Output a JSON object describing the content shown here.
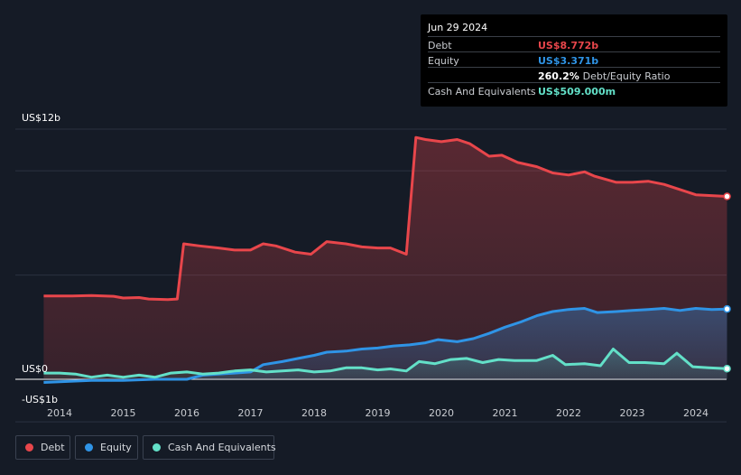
{
  "tooltip": {
    "date": "Jun 29 2024",
    "rows": [
      {
        "label": "Debt",
        "value": "US$8.772b",
        "color": "#e8464b"
      },
      {
        "label": "Equity",
        "value": "US$3.371b",
        "color": "#2f94e6"
      },
      {
        "label": "",
        "value": "260.2%",
        "extra": "Debt/Equity Ratio",
        "color": "#ffffff"
      },
      {
        "label": "Cash And Equivalents",
        "value": "US$509.000m",
        "color": "#63e0c8"
      }
    ]
  },
  "legend": [
    {
      "label": "Debt",
      "color": "#e8464b"
    },
    {
      "label": "Equity",
      "color": "#2f94e6"
    },
    {
      "label": "Cash And Equivalents",
      "color": "#63e0c8"
    }
  ],
  "chart_data": {
    "type": "area",
    "title": "",
    "xlabel": "",
    "ylabel": "",
    "ylim": [
      -1,
      12
    ],
    "y_tick_labels": [
      "US$12b",
      "US$0",
      "-US$1b"
    ],
    "x_tick_labels": [
      "2014",
      "2015",
      "2016",
      "2017",
      "2018",
      "2019",
      "2020",
      "2021",
      "2022",
      "2023",
      "2024"
    ],
    "series": [
      {
        "name": "Debt",
        "color": "#e8464b",
        "points": [
          [
            2013.75,
            4.0
          ],
          [
            2014.2,
            4.0
          ],
          [
            2014.5,
            4.02
          ],
          [
            2014.85,
            3.98
          ],
          [
            2015.0,
            3.9
          ],
          [
            2015.25,
            3.92
          ],
          [
            2015.4,
            3.85
          ],
          [
            2015.7,
            3.82
          ],
          [
            2015.85,
            3.85
          ],
          [
            2015.95,
            6.5
          ],
          [
            2016.2,
            6.4
          ],
          [
            2016.5,
            6.3
          ],
          [
            2016.75,
            6.2
          ],
          [
            2017.0,
            6.2
          ],
          [
            2017.2,
            6.5
          ],
          [
            2017.4,
            6.4
          ],
          [
            2017.7,
            6.1
          ],
          [
            2017.95,
            6.0
          ],
          [
            2018.2,
            6.6
          ],
          [
            2018.5,
            6.5
          ],
          [
            2018.75,
            6.35
          ],
          [
            2019.0,
            6.3
          ],
          [
            2019.2,
            6.3
          ],
          [
            2019.45,
            6.0
          ],
          [
            2019.6,
            11.6
          ],
          [
            2019.75,
            11.5
          ],
          [
            2020.0,
            11.4
          ],
          [
            2020.25,
            11.5
          ],
          [
            2020.45,
            11.3
          ],
          [
            2020.75,
            10.7
          ],
          [
            2020.95,
            10.75
          ],
          [
            2021.2,
            10.4
          ],
          [
            2021.5,
            10.2
          ],
          [
            2021.75,
            9.9
          ],
          [
            2022.0,
            9.8
          ],
          [
            2022.25,
            9.95
          ],
          [
            2022.4,
            9.75
          ],
          [
            2022.75,
            9.45
          ],
          [
            2023.0,
            9.45
          ],
          [
            2023.25,
            9.5
          ],
          [
            2023.5,
            9.35
          ],
          [
            2023.75,
            9.1
          ],
          [
            2024.0,
            8.85
          ],
          [
            2024.49,
            8.772
          ]
        ]
      },
      {
        "name": "Equity",
        "color": "#2f94e6",
        "points": [
          [
            2013.75,
            -0.15
          ],
          [
            2014.0,
            -0.12
          ],
          [
            2014.5,
            -0.05
          ],
          [
            2015.0,
            -0.05
          ],
          [
            2015.5,
            0.0
          ],
          [
            2016.0,
            0.0
          ],
          [
            2016.25,
            0.2
          ],
          [
            2016.75,
            0.3
          ],
          [
            2017.0,
            0.35
          ],
          [
            2017.2,
            0.7
          ],
          [
            2017.5,
            0.85
          ],
          [
            2017.75,
            1.0
          ],
          [
            2018.0,
            1.15
          ],
          [
            2018.2,
            1.3
          ],
          [
            2018.5,
            1.35
          ],
          [
            2018.75,
            1.45
          ],
          [
            2019.0,
            1.5
          ],
          [
            2019.25,
            1.6
          ],
          [
            2019.5,
            1.65
          ],
          [
            2019.75,
            1.75
          ],
          [
            2019.95,
            1.9
          ],
          [
            2020.1,
            1.85
          ],
          [
            2020.25,
            1.8
          ],
          [
            2020.5,
            1.95
          ],
          [
            2020.75,
            2.2
          ],
          [
            2021.0,
            2.5
          ],
          [
            2021.25,
            2.75
          ],
          [
            2021.5,
            3.05
          ],
          [
            2021.75,
            3.25
          ],
          [
            2022.0,
            3.35
          ],
          [
            2022.25,
            3.4
          ],
          [
            2022.45,
            3.2
          ],
          [
            2022.75,
            3.25
          ],
          [
            2023.0,
            3.3
          ],
          [
            2023.25,
            3.35
          ],
          [
            2023.5,
            3.4
          ],
          [
            2023.75,
            3.3
          ],
          [
            2024.0,
            3.4
          ],
          [
            2024.25,
            3.35
          ],
          [
            2024.49,
            3.371
          ]
        ]
      },
      {
        "name": "Cash And Equivalents",
        "color": "#63e0c8",
        "points": [
          [
            2013.75,
            0.3
          ],
          [
            2014.0,
            0.3
          ],
          [
            2014.25,
            0.25
          ],
          [
            2014.5,
            0.1
          ],
          [
            2014.75,
            0.2
          ],
          [
            2015.0,
            0.1
          ],
          [
            2015.25,
            0.2
          ],
          [
            2015.5,
            0.1
          ],
          [
            2015.75,
            0.3
          ],
          [
            2016.0,
            0.35
          ],
          [
            2016.25,
            0.25
          ],
          [
            2016.5,
            0.3
          ],
          [
            2016.75,
            0.4
          ],
          [
            2017.0,
            0.45
          ],
          [
            2017.25,
            0.35
          ],
          [
            2017.5,
            0.4
          ],
          [
            2017.75,
            0.45
          ],
          [
            2018.0,
            0.35
          ],
          [
            2018.25,
            0.4
          ],
          [
            2018.5,
            0.55
          ],
          [
            2018.75,
            0.55
          ],
          [
            2019.0,
            0.45
          ],
          [
            2019.2,
            0.5
          ],
          [
            2019.45,
            0.4
          ],
          [
            2019.65,
            0.85
          ],
          [
            2019.9,
            0.75
          ],
          [
            2020.15,
            0.95
          ],
          [
            2020.4,
            1.0
          ],
          [
            2020.65,
            0.8
          ],
          [
            2020.9,
            0.95
          ],
          [
            2021.15,
            0.9
          ],
          [
            2021.5,
            0.9
          ],
          [
            2021.75,
            1.15
          ],
          [
            2021.95,
            0.7
          ],
          [
            2022.25,
            0.75
          ],
          [
            2022.5,
            0.65
          ],
          [
            2022.7,
            1.45
          ],
          [
            2022.95,
            0.8
          ],
          [
            2023.2,
            0.8
          ],
          [
            2023.5,
            0.75
          ],
          [
            2023.7,
            1.25
          ],
          [
            2023.95,
            0.6
          ],
          [
            2024.2,
            0.55
          ],
          [
            2024.49,
            0.509
          ]
        ]
      }
    ]
  }
}
